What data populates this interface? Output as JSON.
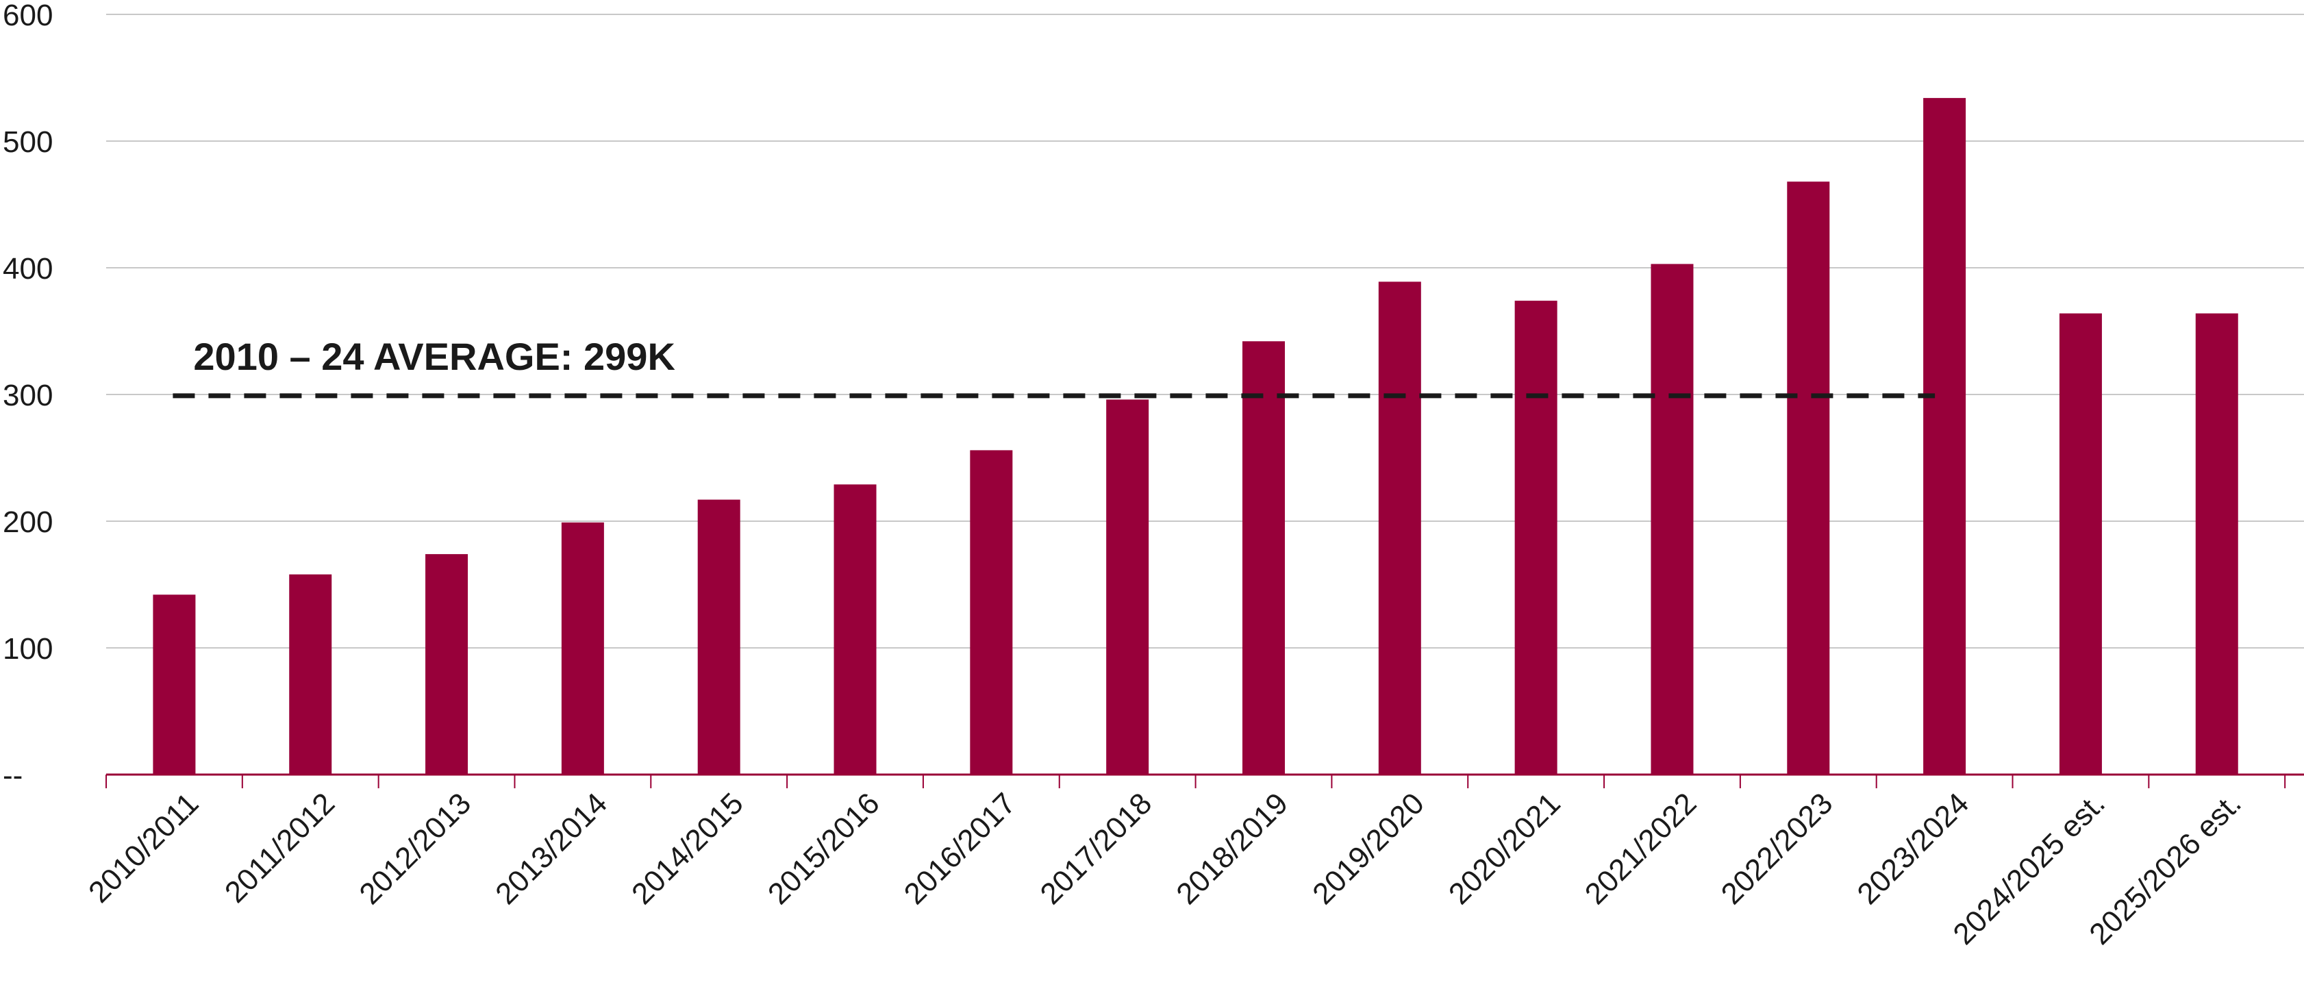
{
  "chart_data": {
    "type": "bar",
    "title": "",
    "xlabel": "",
    "ylabel": "",
    "ylim": [
      0,
      600
    ],
    "yticks": [
      0,
      100,
      200,
      300,
      400,
      500,
      600
    ],
    "yticklabels": [
      "--",
      "100",
      "200",
      "300",
      "400",
      "500",
      "600"
    ],
    "grid": true,
    "categories": [
      "2010/2011",
      "2011/2012",
      "2012/2013",
      "2013/2014",
      "2014/2015",
      "2015/2016",
      "2016/2017",
      "2017/2018",
      "2018/2019",
      "2019/2020",
      "2020/2021",
      "2021/2022",
      "2022/2023",
      "2023/2024",
      "2024/2025 est.",
      "2025/2026 est."
    ],
    "values": [
      142,
      158,
      174,
      199,
      217,
      229,
      256,
      296,
      342,
      389,
      374,
      403,
      468,
      534,
      364,
      364
    ],
    "bar_color": "#98003a",
    "reference_line": {
      "label": "2010 – 24 AVERAGE: 299K",
      "value": 299,
      "from_category": "2010/2011",
      "to_category": "2023/2024",
      "color": "#1a1a1a"
    }
  }
}
